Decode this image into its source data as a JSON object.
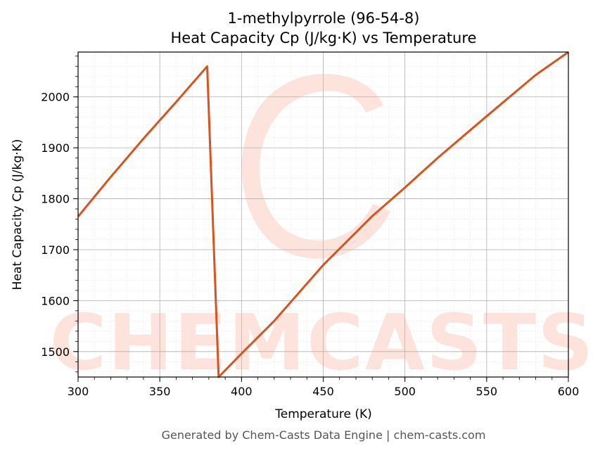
{
  "chart_data": {
    "type": "line",
    "title": "1-methylpyrrole (96-54-8)",
    "subtitle": "Heat Capacity Cp (J/kg·K) vs Temperature",
    "xlabel": "Temperature (K)",
    "ylabel": "Heat Capacity Cp (J/kg·K)",
    "xlim": [
      300,
      600
    ],
    "ylim": [
      1450,
      2088
    ],
    "x_ticks": [
      300,
      350,
      400,
      450,
      500,
      550,
      600
    ],
    "y_ticks": [
      1500,
      1600,
      1700,
      1800,
      1900,
      2000
    ],
    "grid": true,
    "line_color": "#d9531e",
    "series": [
      {
        "x": [
          300,
          320,
          340,
          360,
          379,
          386,
          400,
          420,
          450,
          480,
          500,
          520,
          550,
          580,
          600
        ],
        "values": [
          1765,
          1843,
          1918,
          1990,
          2060,
          1450,
          1496,
          1560,
          1670,
          1766,
          1822,
          1880,
          1962,
          2043,
          2088
        ]
      }
    ]
  },
  "watermark": {
    "text": "CHEMCASTS",
    "color": "#fde3dc"
  },
  "footer": "Generated by Chem-Casts Data Engine | chem-casts.com"
}
